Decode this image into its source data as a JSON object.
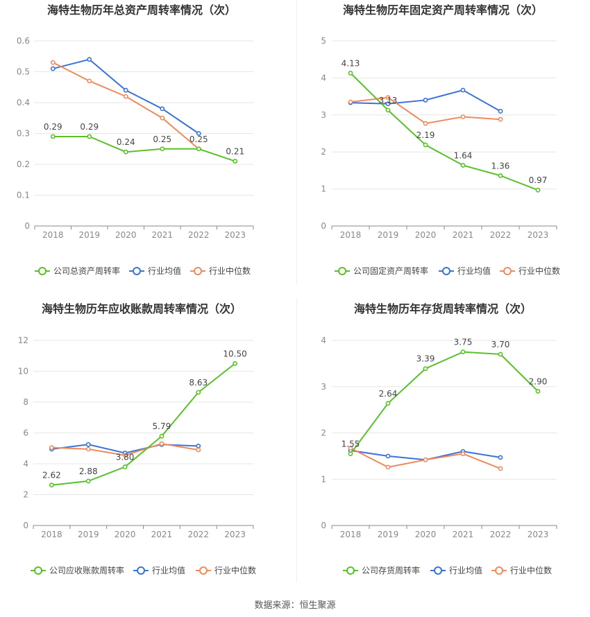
{
  "source_text": "数据来源：恒生聚源",
  "colors": {
    "company": "#5ac02a",
    "average": "#3a72d6",
    "median": "#f08a5d",
    "grid": "#e6e6e6",
    "axis": "#888888",
    "tick_text": "#888888",
    "title_text": "#333333"
  },
  "legend_labels": {
    "average": "行业均值",
    "median": "行业中位数"
  },
  "chart_data": [
    {
      "id": "total-asset-turnover",
      "type": "line",
      "title": "海特生物历年总资产周转率情况（次）",
      "categories": [
        "2018",
        "2019",
        "2020",
        "2021",
        "2022",
        "2023"
      ],
      "ylim": [
        0,
        0.6
      ],
      "yticks": [
        "0",
        "0.1",
        "0.2",
        "0.3",
        "0.4",
        "0.5",
        "0.6"
      ],
      "legend": [
        "公司总资产周转率",
        "行业均值",
        "行业中位数"
      ],
      "series": [
        {
          "name": "公司总资产周转率",
          "key": "company",
          "values": [
            0.29,
            0.29,
            0.24,
            0.25,
            0.25,
            0.21
          ],
          "labels": [
            "0.29",
            "0.29",
            "0.24",
            "0.25",
            "0.25",
            "0.21"
          ]
        },
        {
          "name": "行业均值",
          "key": "average",
          "values": [
            0.51,
            0.54,
            0.44,
            0.38,
            0.3,
            null
          ]
        },
        {
          "name": "行业中位数",
          "key": "median",
          "values": [
            0.53,
            0.47,
            0.42,
            0.35,
            0.25,
            null
          ]
        }
      ]
    },
    {
      "id": "fixed-asset-turnover",
      "type": "line",
      "title": "海特生物历年固定资产周转率情况（次）",
      "categories": [
        "2018",
        "2019",
        "2020",
        "2021",
        "2022",
        "2023"
      ],
      "ylim": [
        0,
        5
      ],
      "yticks": [
        "0",
        "1",
        "2",
        "3",
        "4",
        "5"
      ],
      "legend": [
        "公司固定资产周转率",
        "行业均值",
        "行业中位数"
      ],
      "series": [
        {
          "name": "公司固定资产周转率",
          "key": "company",
          "values": [
            4.13,
            3.13,
            2.19,
            1.64,
            1.36,
            0.97
          ],
          "labels": [
            "4.13",
            "3.13",
            "2.19",
            "1.64",
            "1.36",
            "0.97"
          ]
        },
        {
          "name": "行业均值",
          "key": "average",
          "values": [
            3.33,
            3.3,
            3.4,
            3.67,
            3.1,
            null
          ]
        },
        {
          "name": "行业中位数",
          "key": "median",
          "values": [
            3.35,
            3.47,
            2.77,
            2.95,
            2.88,
            null
          ]
        }
      ]
    },
    {
      "id": "receivables-turnover",
      "type": "line",
      "title": "海特生物历年应收账款周转率情况（次）",
      "categories": [
        "2018",
        "2019",
        "2020",
        "2021",
        "2022",
        "2023"
      ],
      "ylim": [
        0,
        12
      ],
      "yticks": [
        "0",
        "2",
        "4",
        "6",
        "8",
        "10",
        "12"
      ],
      "legend": [
        "公司应收账款周转率",
        "行业均值",
        "行业中位数"
      ],
      "series": [
        {
          "name": "公司应收账款周转率",
          "key": "company",
          "values": [
            2.62,
            2.88,
            3.8,
            5.79,
            8.63,
            10.5
          ],
          "labels": [
            "2.62",
            "2.88",
            "3.80",
            "5.79",
            "8.63",
            "10.50"
          ]
        },
        {
          "name": "行业均值",
          "key": "average",
          "values": [
            4.95,
            5.25,
            4.7,
            5.25,
            5.15,
            null
          ]
        },
        {
          "name": "行业中位数",
          "key": "median",
          "values": [
            5.05,
            4.95,
            4.55,
            5.3,
            4.9,
            null
          ]
        }
      ]
    },
    {
      "id": "inventory-turnover",
      "type": "line",
      "title": "海特生物历年存货周转率情况（次）",
      "categories": [
        "2018",
        "2019",
        "2020",
        "2021",
        "2022",
        "2023"
      ],
      "ylim": [
        0,
        4
      ],
      "yticks": [
        "0",
        "1",
        "2",
        "3",
        "4"
      ],
      "legend": [
        "公司存货周转率",
        "行业均值",
        "行业中位数"
      ],
      "series": [
        {
          "name": "公司存货周转率",
          "key": "company",
          "values": [
            1.55,
            2.64,
            3.39,
            3.75,
            3.7,
            2.9
          ],
          "labels": [
            "1.55",
            "2.64",
            "3.39",
            "3.75",
            "3.70",
            "2.90"
          ]
        },
        {
          "name": "行业均值",
          "key": "average",
          "values": [
            1.62,
            1.5,
            1.42,
            1.6,
            1.47,
            null
          ]
        },
        {
          "name": "行业中位数",
          "key": "median",
          "values": [
            1.67,
            1.26,
            1.42,
            1.55,
            1.23,
            null
          ]
        }
      ]
    }
  ]
}
